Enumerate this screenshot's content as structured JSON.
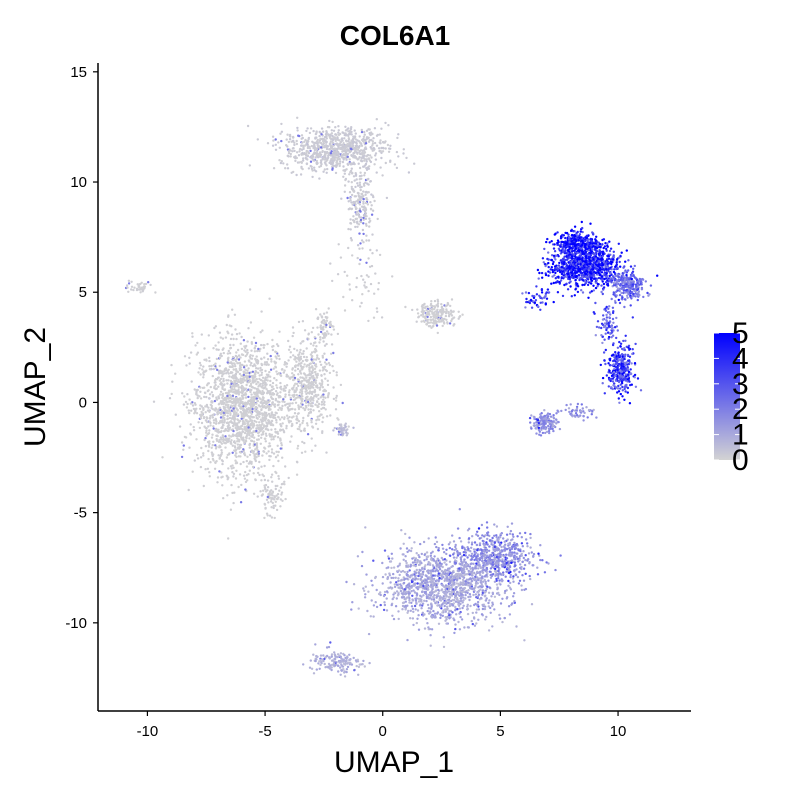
{
  "chart_data": {
    "type": "scatter",
    "title": "COL6A1",
    "xlabel": "UMAP_1",
    "ylabel": "UMAP_2",
    "xlim": [
      -12.1,
      13.1
    ],
    "ylim": [
      -14,
      15.4
    ],
    "x_ticks": [
      -10,
      -5,
      0,
      5,
      10
    ],
    "y_ticks": [
      15,
      10,
      5,
      0,
      -5,
      -10
    ],
    "grid": false,
    "color_scale": {
      "min": 0,
      "max": 5,
      "low_color": "#d3d3d3",
      "high_color": "#0000ff",
      "ticks": [
        0,
        1,
        2,
        3,
        4,
        5
      ],
      "legend_position": "right"
    },
    "clusters": [
      {
        "center": [
          -6.0,
          -0.2
        ],
        "spread": [
          1.8,
          2.7
        ],
        "n": 1800,
        "expr": 0.1
      },
      {
        "center": [
          -3.2,
          0.8
        ],
        "spread": [
          1.0,
          2.0
        ],
        "n": 500,
        "expr": 0.1
      },
      {
        "center": [
          -2.0,
          11.5
        ],
        "spread": [
          2.0,
          0.9
        ],
        "n": 800,
        "expr": 0.2
      },
      {
        "center": [
          -1.0,
          9.0
        ],
        "spread": [
          0.6,
          1.5
        ],
        "n": 200,
        "expr": 0.2
      },
      {
        "center": [
          2.3,
          4.0
        ],
        "spread": [
          0.8,
          0.5
        ],
        "n": 200,
        "expr": 0.1
      },
      {
        "center": [
          -2.5,
          3.5
        ],
        "spread": [
          0.3,
          0.6
        ],
        "n": 60,
        "expr": 0.1
      },
      {
        "center": [
          2.5,
          -8.3
        ],
        "spread": [
          2.5,
          1.5
        ],
        "n": 1300,
        "expr": 1.0
      },
      {
        "center": [
          4.8,
          -7.0
        ],
        "spread": [
          1.4,
          1.1
        ],
        "n": 500,
        "expr": 1.6
      },
      {
        "center": [
          -2.0,
          -11.8
        ],
        "spread": [
          1.0,
          0.5
        ],
        "n": 150,
        "expr": 0.8
      },
      {
        "center": [
          -4.7,
          -4.2
        ],
        "spread": [
          0.4,
          0.8
        ],
        "n": 80,
        "expr": 0.1
      },
      {
        "center": [
          -1.7,
          -1.3
        ],
        "spread": [
          0.3,
          0.3
        ],
        "n": 40,
        "expr": 0.5
      },
      {
        "center": [
          8.6,
          6.2
        ],
        "spread": [
          1.3,
          0.9
        ],
        "n": 1000,
        "expr": 4.3
      },
      {
        "center": [
          8.3,
          7.2
        ],
        "spread": [
          0.8,
          0.5
        ],
        "n": 300,
        "expr": 4.8
      },
      {
        "center": [
          10.4,
          5.3
        ],
        "spread": [
          0.7,
          0.6
        ],
        "n": 250,
        "expr": 2.5
      },
      {
        "center": [
          10.1,
          1.5
        ],
        "spread": [
          0.5,
          1.0
        ],
        "n": 300,
        "expr": 3.5
      },
      {
        "center": [
          9.5,
          3.5
        ],
        "spread": [
          0.4,
          0.8
        ],
        "n": 80,
        "expr": 3.0
      },
      {
        "center": [
          6.6,
          4.7
        ],
        "spread": [
          0.5,
          0.4
        ],
        "n": 50,
        "expr": 3.5
      },
      {
        "center": [
          6.9,
          -0.9
        ],
        "spread": [
          0.5,
          0.4
        ],
        "n": 150,
        "expr": 1.5
      },
      {
        "center": [
          8.3,
          -0.4
        ],
        "spread": [
          0.6,
          0.3
        ],
        "n": 50,
        "expr": 1.5
      },
      {
        "center": [
          -10.3,
          5.2
        ],
        "spread": [
          0.6,
          0.3
        ],
        "n": 40,
        "expr": 0.1
      },
      {
        "center": [
          -0.9,
          6.0
        ],
        "spread": [
          1.0,
          1.8
        ],
        "n": 50,
        "expr": 0.1
      }
    ]
  }
}
